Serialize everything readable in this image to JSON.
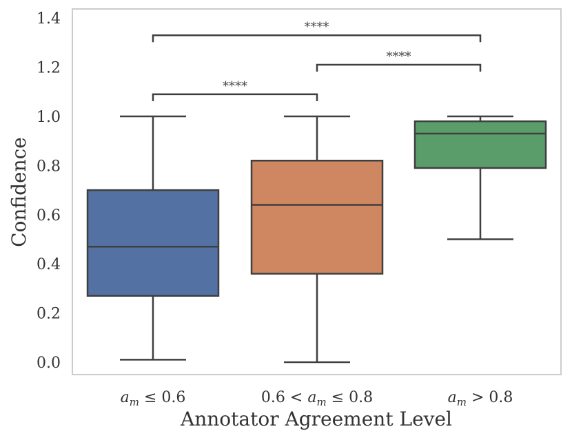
{
  "chart_data": {
    "type": "box",
    "xlabel": "Annotator Agreement Level",
    "ylabel": "Confidence",
    "ylim": [
      -0.05,
      1.43
    ],
    "yticks": [
      "0.0",
      "0.2",
      "0.4",
      "0.6",
      "0.8",
      "1.0",
      "1.2",
      "1.4"
    ],
    "grid": false,
    "categories": [
      {
        "label_main": "a",
        "label_sub": "m",
        "label_rest": " ≤ 0.6"
      },
      {
        "label_pre": "0.6 < a",
        "label_sub": "m",
        "label_rest": " ≤ 0.8"
      },
      {
        "label_main": "a",
        "label_sub": "m",
        "label_rest": " > 0.8"
      }
    ],
    "boxes": [
      {
        "whislo": 0.01,
        "q1": 0.27,
        "med": 0.47,
        "q3": 0.7,
        "whishi": 1.0,
        "color": "#5471a3"
      },
      {
        "whislo": 0.0,
        "q1": 0.36,
        "med": 0.64,
        "q3": 0.82,
        "whishi": 1.0,
        "color": "#ce8761"
      },
      {
        "whislo": 0.5,
        "q1": 0.79,
        "med": 0.93,
        "q3": 0.98,
        "whishi": 1.0,
        "color": "#5b9c6b"
      }
    ],
    "annotations": [
      {
        "from": 0,
        "to": 1,
        "y": 1.09,
        "text": "****"
      },
      {
        "from": 1,
        "to": 2,
        "y": 1.21,
        "text": "****"
      },
      {
        "from": 0,
        "to": 2,
        "y": 1.33,
        "text": "****"
      }
    ]
  }
}
